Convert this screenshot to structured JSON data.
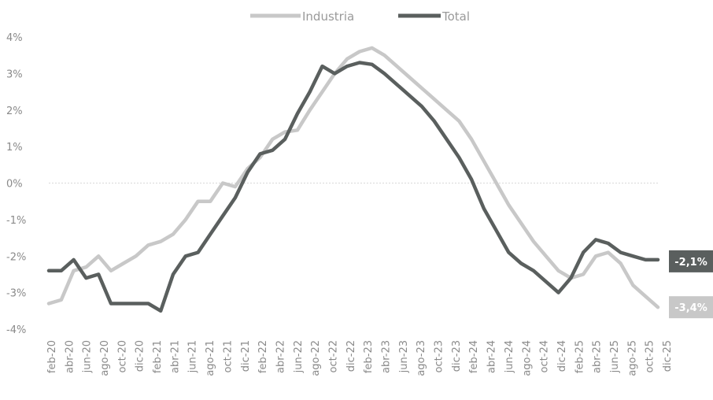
{
  "chart_data": {
    "type": "line",
    "legend": [
      "Industria",
      "Total"
    ],
    "legend_position": "top-center",
    "grid": false,
    "zero_line": true,
    "ylim": [
      -4,
      4
    ],
    "y_ticks": [
      "4%",
      "3%",
      "2%",
      "1%",
      "0%",
      "-1%",
      "-2%",
      "-3%",
      "-4%"
    ],
    "x_tick_labels": [
      "feb-20",
      "abr-20",
      "jun-20",
      "ago-20",
      "oct-20",
      "dic-20",
      "feb-21",
      "abr-21",
      "jun-21",
      "ago-21",
      "oct-21",
      "dic-21",
      "feb-22",
      "abr-22",
      "jun-22",
      "ago-22",
      "oct-22",
      "dic-22",
      "feb-23",
      "abr-23",
      "jun-23",
      "ago-23",
      "oct-23",
      "dic-23",
      "feb-24",
      "abr-24",
      "jun-24",
      "ago-24",
      "oct-24",
      "dic-24",
      "feb-25",
      "abr-25",
      "jun-25",
      "ago-25",
      "oct-25",
      "dic-25"
    ],
    "series": [
      {
        "name": "Industria",
        "color": "#c8c8c8",
        "values": [
          -3.3,
          -3.2,
          -2.4,
          -2.3,
          -2.0,
          -2.4,
          -2.2,
          -2.0,
          -1.7,
          -1.6,
          -1.4,
          -1.0,
          -0.5,
          -0.5,
          0.0,
          -0.1,
          0.4,
          0.7,
          1.2,
          1.4,
          1.45,
          2.0,
          2.5,
          3.0,
          3.4,
          3.6,
          3.7,
          3.5,
          3.2,
          2.9,
          2.6,
          2.3,
          2.0,
          1.7,
          1.2,
          0.6,
          0.0,
          -0.6,
          -1.1,
          -1.6,
          -2.0,
          -2.4,
          -2.6,
          -2.5,
          -2.0,
          -1.9,
          -2.2,
          -2.8,
          -3.1,
          -3.4
        ],
        "end_label": "-3,4%"
      },
      {
        "name": "Total",
        "color": "#5a5f5e",
        "values": [
          -2.4,
          -2.4,
          -2.1,
          -2.6,
          -2.5,
          -3.3,
          -3.3,
          -3.3,
          -3.3,
          -3.5,
          -2.5,
          -2.0,
          -1.9,
          -1.4,
          -0.9,
          -0.4,
          0.3,
          0.8,
          0.9,
          1.2,
          1.9,
          2.5,
          3.2,
          3.0,
          3.2,
          3.3,
          3.25,
          3.0,
          2.7,
          2.4,
          2.1,
          1.7,
          1.2,
          0.7,
          0.1,
          -0.7,
          -1.3,
          -1.9,
          -2.2,
          -2.4,
          -2.7,
          -3.0,
          -2.6,
          -1.9,
          -1.55,
          -1.65,
          -1.9,
          -2.0,
          -2.1,
          -2.1
        ],
        "end_label": "-2,1%"
      }
    ]
  }
}
